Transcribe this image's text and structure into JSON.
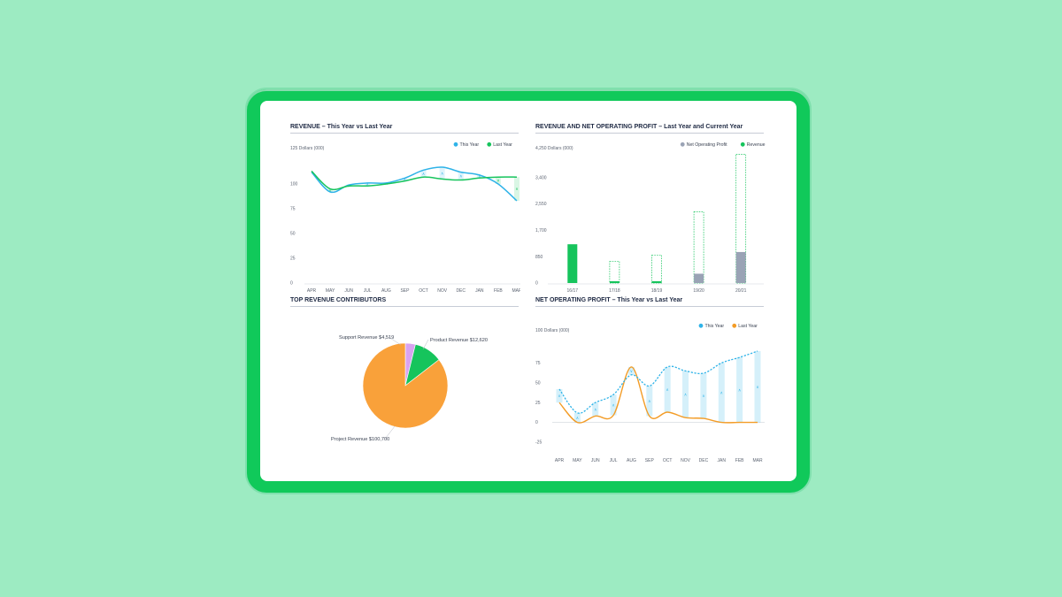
{
  "colors": {
    "background": "#9debc2",
    "tablet_frame": "#10c95a",
    "this_year": "#2fb3e8",
    "last_year": "#16c45c",
    "net_profit_last_year": "#f39c26",
    "net_operating_profit_bar": "#9aa3b5",
    "revenue_bar": "#16c45c",
    "pie_project": "#f9a13a",
    "pie_product": "#16c45c",
    "pie_support": "#d9a3f0"
  },
  "chart_data": [
    {
      "id": "revenue",
      "type": "line",
      "title": "REVENUE – This Year vs Last Year",
      "unit_label": "125 Dollars (000)",
      "x": [
        "APR",
        "MAY",
        "JUN",
        "JUL",
        "AUG",
        "SEP",
        "OCT",
        "NOV",
        "DEC",
        "JAN",
        "FEB",
        "MAR"
      ],
      "yticks": [
        0,
        25,
        50,
        75,
        100
      ],
      "ylim": [
        0,
        125
      ],
      "legend": {
        "placement": "top-right"
      },
      "series": [
        {
          "name": "This Year",
          "color": "#2fb3e8",
          "values": [
            112,
            92,
            99,
            101,
            101,
            106,
            114,
            117,
            112,
            109,
            100,
            83
          ]
        },
        {
          "name": "Last Year",
          "color": "#16c45c",
          "values": [
            113,
            95,
            98,
            98,
            100,
            103,
            107,
            105,
            104,
            106,
            107,
            107
          ]
        }
      ]
    },
    {
      "id": "revenue-profit",
      "type": "bar",
      "title": "REVENUE AND NET OPERATING PROFIT – Last Year and Current Year",
      "unit_label": "4,250 Dollars (000)",
      "categories": [
        "16/17",
        "17/18",
        "18/19",
        "19/20",
        "20/21"
      ],
      "yticks": [
        "0",
        "850",
        "1,700",
        "2,550",
        "3,400"
      ],
      "ytick_values": [
        0,
        850,
        1700,
        2550,
        3400
      ],
      "ylim": [
        0,
        4250
      ],
      "legend": {
        "placement": "top-right"
      },
      "series": [
        {
          "name": "Net Operating Profit",
          "color": "#9aa3b5",
          "values": [
            0,
            0,
            0,
            300,
            1000
          ]
        },
        {
          "name": "Revenue",
          "color": "#16c45c",
          "values": [
            1250,
            700,
            900,
            2300,
            4150
          ]
        }
      ]
    },
    {
      "id": "top-contributors",
      "type": "pie",
      "title": "TOP REVENUE CONTRIBUTORS",
      "slices": [
        {
          "label": "Project Revenue $100,700",
          "value": 100700,
          "color": "#f9a13a"
        },
        {
          "label": "Support Revenue $4,519",
          "value": 4519,
          "color": "#d9a3f0"
        },
        {
          "label": "Product Revenue $12,620",
          "value": 12620,
          "color": "#16c45c"
        }
      ]
    },
    {
      "id": "net-profit",
      "type": "line",
      "title": "NET OPERATING PROFIT – This Year vs Last Year",
      "unit_label": "100 Dollars (000)",
      "x": [
        "APR",
        "MAY",
        "JUN",
        "JUL",
        "AUG",
        "SEP",
        "OCT",
        "NOV",
        "DEC",
        "JAN",
        "FEB",
        "MAR"
      ],
      "yticks": [
        -25,
        0,
        25,
        50,
        75
      ],
      "ylim": [
        -25,
        100
      ],
      "legend": {
        "placement": "top-right"
      },
      "series": [
        {
          "name": "This Year",
          "color": "#2fb3e8",
          "values": [
            42,
            12,
            25,
            35,
            60,
            46,
            70,
            65,
            62,
            75,
            82,
            90
          ]
        },
        {
          "name": "Last Year",
          "color": "#f39c26",
          "values": [
            25,
            0,
            8,
            9,
            70,
            8,
            13,
            6,
            5,
            0,
            0,
            0
          ]
        }
      ]
    }
  ]
}
